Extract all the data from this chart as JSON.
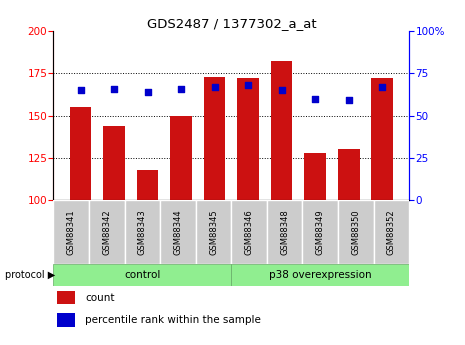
{
  "title": "GDS2487 / 1377302_a_at",
  "samples": [
    "GSM88341",
    "GSM88342",
    "GSM88343",
    "GSM88344",
    "GSM88345",
    "GSM88346",
    "GSM88348",
    "GSM88349",
    "GSM88350",
    "GSM88352"
  ],
  "counts": [
    155,
    144,
    118,
    150,
    173,
    172,
    182,
    128,
    130,
    172
  ],
  "percentile_ranks": [
    65,
    66,
    64,
    66,
    67,
    68,
    65,
    60,
    59,
    67
  ],
  "bar_color": "#CC1111",
  "dot_color": "#0000CC",
  "ylim_left": [
    100,
    200
  ],
  "ylim_right": [
    0,
    100
  ],
  "yticks_left": [
    100,
    125,
    150,
    175,
    200
  ],
  "yticks_right": [
    0,
    25,
    50,
    75,
    100
  ],
  "tick_label_bg": "#cccccc",
  "green_color": "#90EE90",
  "bar_bottom": 100,
  "n_control": 5
}
